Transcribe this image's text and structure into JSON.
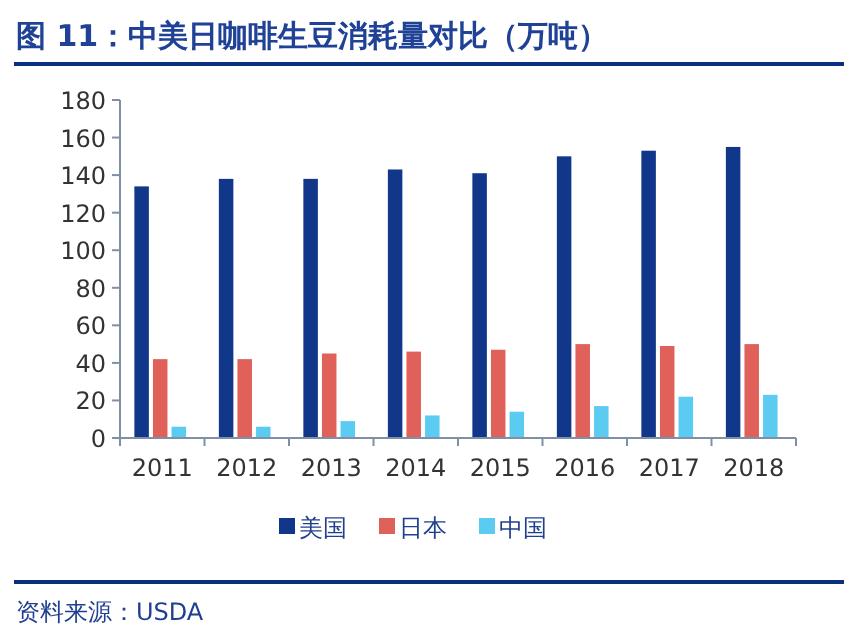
{
  "chart_data": {
    "type": "bar",
    "title": "图 11：中美日咖啡生豆消耗量对比（万吨）",
    "categories": [
      "2011",
      "2012",
      "2013",
      "2014",
      "2015",
      "2016",
      "2017",
      "2018"
    ],
    "series": [
      {
        "name": "美国",
        "color": "#10378a",
        "values": [
          134,
          138,
          138,
          143,
          141,
          150,
          153,
          155
        ]
      },
      {
        "name": "日本",
        "color": "#e0605a",
        "values": [
          42,
          42,
          45,
          46,
          47,
          50,
          49,
          50
        ]
      },
      {
        "name": "中国",
        "color": "#5ccbf2",
        "values": [
          6,
          6,
          9,
          12,
          14,
          17,
          22,
          23
        ]
      }
    ],
    "ylim": [
      0,
      180
    ],
    "yticks": [
      0,
      20,
      40,
      60,
      80,
      100,
      120,
      140,
      160,
      180
    ],
    "grid": false,
    "legend": "bottom",
    "annotations": [
      "资料来源：USDA"
    ]
  }
}
